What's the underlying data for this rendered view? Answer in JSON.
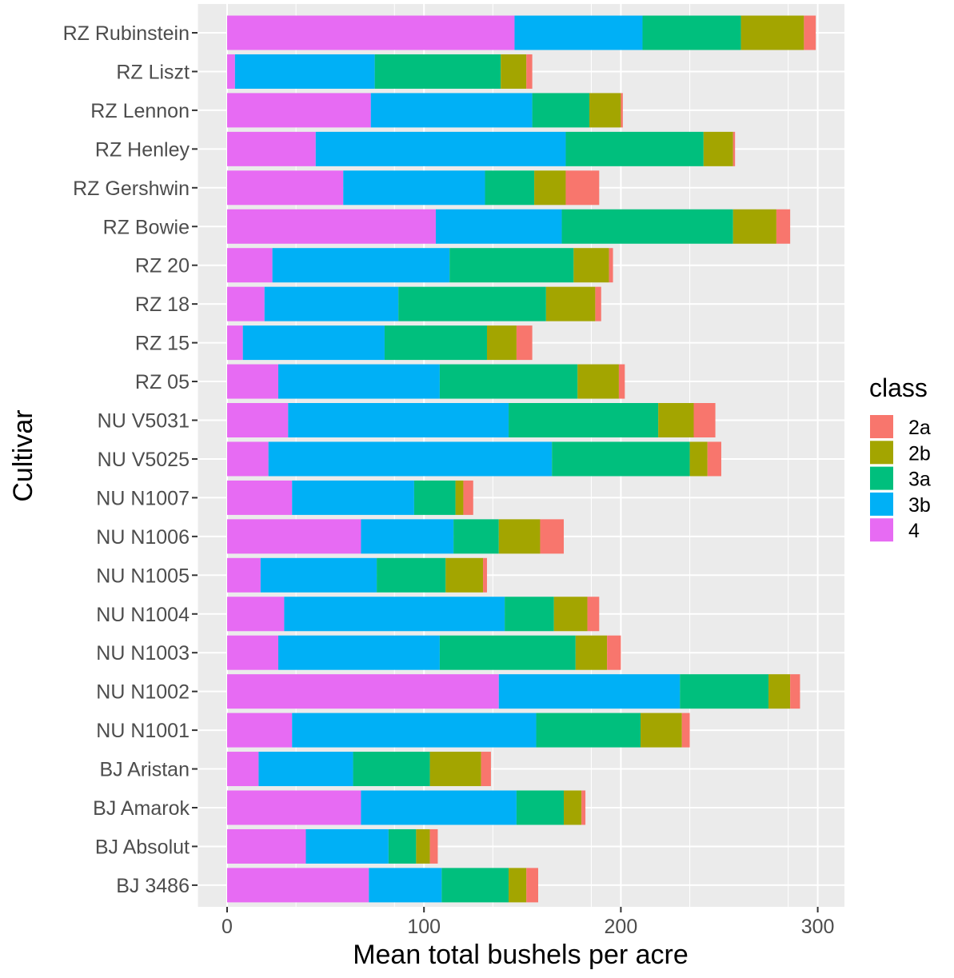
{
  "chart_data": {
    "type": "bar",
    "orientation": "horizontal",
    "stacked": true,
    "title": "",
    "xlabel": "Mean total bushels per acre",
    "ylabel": "Cultivar",
    "xlim": [
      -15,
      313
    ],
    "xticks": [
      0,
      100,
      200,
      300
    ],
    "grid": true,
    "legend_title": "class",
    "legend_position": "right",
    "categories": [
      "RZ Rubinstein",
      "RZ Liszt",
      "RZ Lennon",
      "RZ Henley",
      "RZ Gershwin",
      "RZ Bowie",
      "RZ 20",
      "RZ 18",
      "RZ 15",
      "RZ 05",
      "NU V5031",
      "NU V5025",
      "NU N1007",
      "NU N1006",
      "NU N1005",
      "NU N1004",
      "NU N1003",
      "NU N1002",
      "NU N1001",
      "BJ Aristan",
      "BJ Amarok",
      "BJ Absolut",
      "BJ 3486"
    ],
    "stack_order": [
      "4",
      "3b",
      "3a",
      "2b",
      "2a"
    ],
    "series": [
      {
        "name": "2a",
        "color": "#F8766D",
        "values": [
          6,
          3,
          1,
          1,
          17,
          7,
          2,
          3,
          8,
          3,
          11,
          7,
          5,
          12,
          2,
          6,
          7,
          5,
          4,
          5,
          2,
          4,
          6
        ]
      },
      {
        "name": "2b",
        "color": "#A3A500",
        "values": [
          32,
          13,
          16,
          15,
          16,
          22,
          18,
          25,
          15,
          21,
          18,
          9,
          4,
          21,
          19,
          17,
          16,
          11,
          21,
          26,
          9,
          7,
          9
        ]
      },
      {
        "name": "3a",
        "color": "#00BF7D",
        "values": [
          50,
          64,
          29,
          70,
          25,
          87,
          63,
          75,
          52,
          70,
          76,
          70,
          21,
          23,
          35,
          25,
          69,
          45,
          53,
          39,
          24,
          14,
          34
        ]
      },
      {
        "name": "3b",
        "color": "#00B0F6",
        "values": [
          65,
          71,
          82,
          127,
          72,
          64,
          90,
          68,
          72,
          82,
          112,
          144,
          62,
          47,
          59,
          112,
          82,
          92,
          124,
          48,
          79,
          42,
          37
        ]
      },
      {
        "name": "4",
        "color": "#E76BF3",
        "values": [
          146,
          4,
          73,
          45,
          59,
          106,
          23,
          19,
          8,
          26,
          31,
          21,
          33,
          68,
          17,
          29,
          26,
          138,
          33,
          16,
          68,
          40,
          72
        ]
      }
    ]
  }
}
